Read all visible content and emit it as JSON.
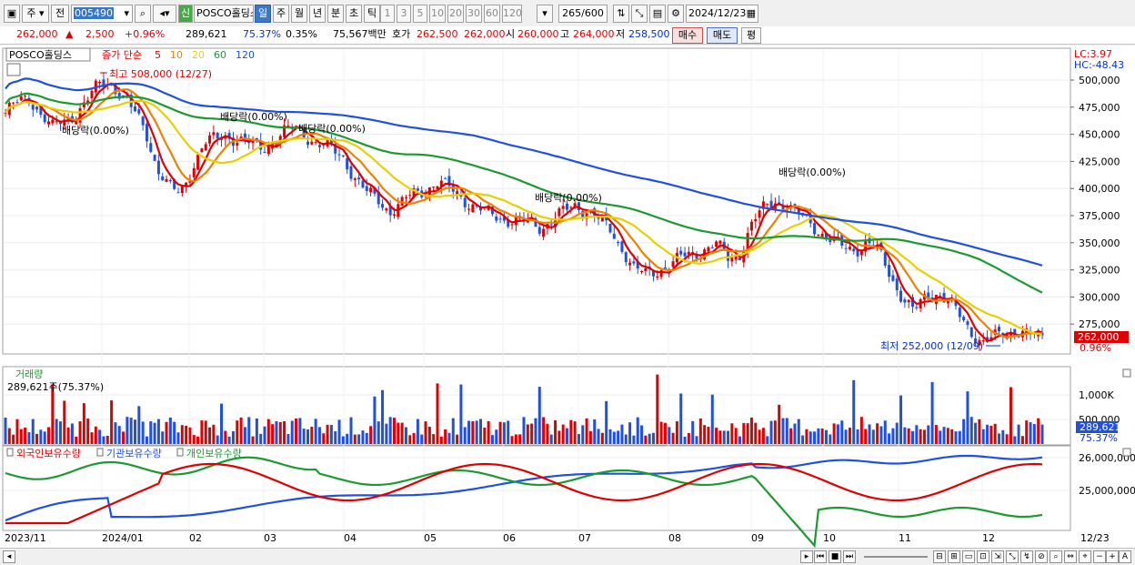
{
  "toolbar": {
    "market_label": "주",
    "prev_label": "전",
    "code": "005490",
    "stock_name": "POSCO홀딩스",
    "credit_badge": "신",
    "periods": [
      "일",
      "주",
      "월",
      "년",
      "분",
      "초",
      "틱"
    ],
    "active_period": "일",
    "intervals": [
      "1",
      "3",
      "5",
      "10",
      "20",
      "30",
      "60",
      "120"
    ],
    "count": "265",
    "max_count": "/600",
    "date": "2024/12/23"
  },
  "quote": {
    "price": "262,000",
    "change": "2,500",
    "change_pct": "+0.96%",
    "volume": "289,621",
    "volume_ratio": "75.37%",
    "turnover": "0.35%",
    "amount": "75,567백만",
    "bid_label": "호가",
    "ask": "262,500",
    "bid": "262,000",
    "open_label": "시",
    "open": "260,000",
    "high_label": "고",
    "high": "264,000",
    "low_label": "저",
    "low": "258,500",
    "buy_label": "매수",
    "sell_label": "매도",
    "avg_label": "평"
  },
  "price_panel": {
    "legend_name": "POSCO홀딩스",
    "legend_type": "종가 단순",
    "ma_labels": [
      {
        "text": "5",
        "color": "#e00000"
      },
      {
        "text": "10",
        "color": "#f08000"
      },
      {
        "text": "20",
        "color": "#e8d000"
      },
      {
        "text": "60",
        "color": "#1a9a30"
      },
      {
        "text": "120",
        "color": "#2050e0"
      }
    ],
    "lc": "LC:3.97",
    "hc": "HC:-48.43",
    "current_tag": "262,000",
    "current_pct": "0.96%",
    "high_note": "최고 508,000 (12/27)",
    "low_note": "최저 252,000 (12/09)",
    "dividend_label": "배당락(0.00%)"
  },
  "volume_panel": {
    "title": "거래량",
    "sub": "289,621주(75.37%)",
    "tag": "289,621",
    "tag_pct": "75.37%"
  },
  "holding_panel": {
    "items": [
      {
        "label": "외국인보유수량",
        "color": "#e00000"
      },
      {
        "label": "기관보유수량",
        "color": "#2050e0"
      },
      {
        "label": "개인보유수량",
        "color": "#1a9a30"
      }
    ]
  },
  "x_axis": [
    "2023/11",
    "2024/01",
    "02",
    "03",
    "04",
    "05",
    "06",
    "07",
    "08",
    "09",
    "10",
    "11",
    "12",
    "12/23"
  ],
  "chart_data": {
    "type": "candlestick",
    "price_axis": [
      "500,000",
      "475,000",
      "450,000",
      "425,000",
      "400,000",
      "375,000",
      "350,000",
      "325,000",
      "300,000",
      "275,000"
    ],
    "volume_axis": [
      "1,000K",
      "500,000"
    ],
    "holding_axis": [
      "26,000,000",
      "25,000,000"
    ],
    "close_series_approx": [
      470000,
      478000,
      485000,
      470000,
      455000,
      462000,
      470000,
      480000,
      495000,
      500000,
      485000,
      470000,
      455000,
      420000,
      400000,
      395000,
      420000,
      440000,
      445000,
      450000,
      445000,
      440000,
      438000,
      445000,
      452000,
      455000,
      448000,
      440000,
      435000,
      430000,
      410000,
      395000,
      390000,
      380000,
      385000,
      395000,
      400000,
      405000,
      400000,
      395000,
      385000,
      378000,
      375000,
      372000,
      370000,
      368000,
      365000,
      372000,
      378000,
      385000,
      380000,
      370000,
      360000,
      345000,
      325000,
      320000,
      325000,
      330000,
      335000,
      340000,
      345000,
      348000,
      335000,
      340000,
      365000,
      380000,
      390000,
      385000,
      375000,
      370000,
      360000,
      350000,
      345000,
      345000,
      350000,
      340000,
      320000,
      300000,
      285000,
      300000,
      305000,
      295000,
      280000,
      268000,
      258000,
      262000,
      268000,
      270000,
      264000,
      262000
    ]
  }
}
